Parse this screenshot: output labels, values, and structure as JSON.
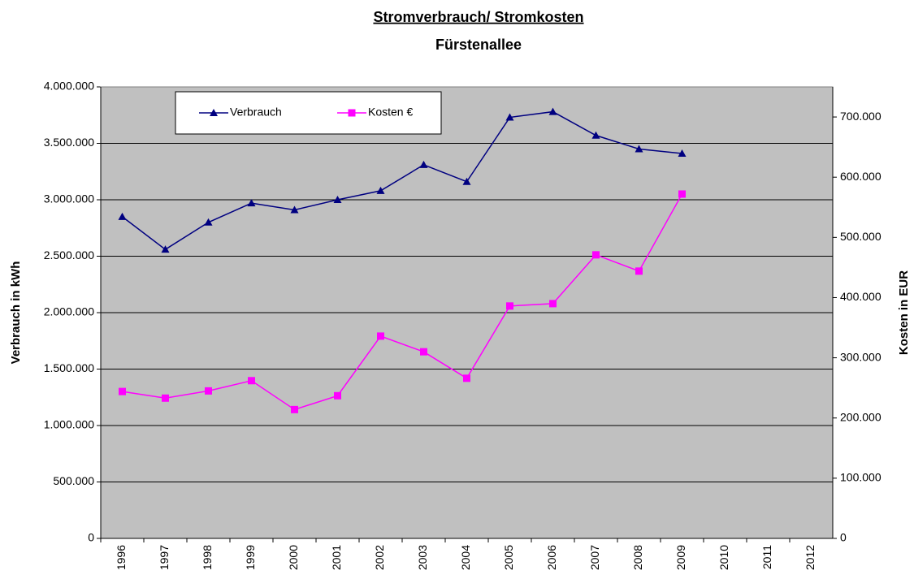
{
  "chart_data": {
    "type": "line",
    "title": "Stromverbrauch/ Stromkosten",
    "subtitle": "Fürstenallee",
    "y_label": "Verbrauch in kWh",
    "y2_label": "Kosten in EUR",
    "categories": [
      "1996",
      "1997",
      "1998",
      "1999",
      "2000",
      "2001",
      "2002",
      "2003",
      "2004",
      "2005",
      "2006",
      "2007",
      "2008",
      "2009",
      "2010",
      "2011",
      "2012"
    ],
    "series": [
      {
        "name": "Verbrauch",
        "color": "#000080",
        "marker": "triangle",
        "values": [
          2850000,
          2560000,
          2800000,
          2970000,
          2910000,
          3000000,
          3080000,
          3310000,
          3160000,
          3730000,
          3780000,
          3570000,
          3450000,
          3410000,
          null,
          null,
          null
        ]
      },
      {
        "name": "Kosten €",
        "color": "#ff00ff",
        "marker": "square",
        "axis": "y2",
        "values": [
          244000,
          233000,
          245000,
          262000,
          214000,
          237000,
          336000,
          310000,
          266000,
          386000,
          390000,
          471000,
          444000,
          572000,
          null,
          null,
          null
        ]
      }
    ],
    "ylim": [
      0,
      4000000
    ],
    "yticks": [
      0,
      {
        "value": 500000,
        "label": "500.000"
      },
      {
        "value": 1000000,
        "label": "1.000.000"
      },
      {
        "value": 1500000,
        "label": "1.500.000"
      },
      {
        "value": 2000000,
        "label": "2.000.000"
      },
      {
        "value": 2500000,
        "label": "2.500.000"
      },
      {
        "value": 3000000,
        "label": "3.000.000"
      },
      {
        "value": 3500000,
        "label": "3.500.000"
      },
      {
        "value": 4000000,
        "label": "4.000.000"
      }
    ],
    "y2lim": [
      0,
      750000
    ],
    "y2ticks": [
      0,
      {
        "value": 100000,
        "label": "100.000"
      },
      {
        "value": 200000,
        "label": "200.000"
      },
      {
        "value": 300000,
        "label": "300.000"
      },
      {
        "value": 400000,
        "label": "400.000"
      },
      {
        "value": 500000,
        "label": "500.000"
      },
      {
        "value": 600000,
        "label": "600.000"
      },
      {
        "value": 700000,
        "label": "700.000"
      }
    ],
    "grid": true,
    "legend": "top-left"
  }
}
